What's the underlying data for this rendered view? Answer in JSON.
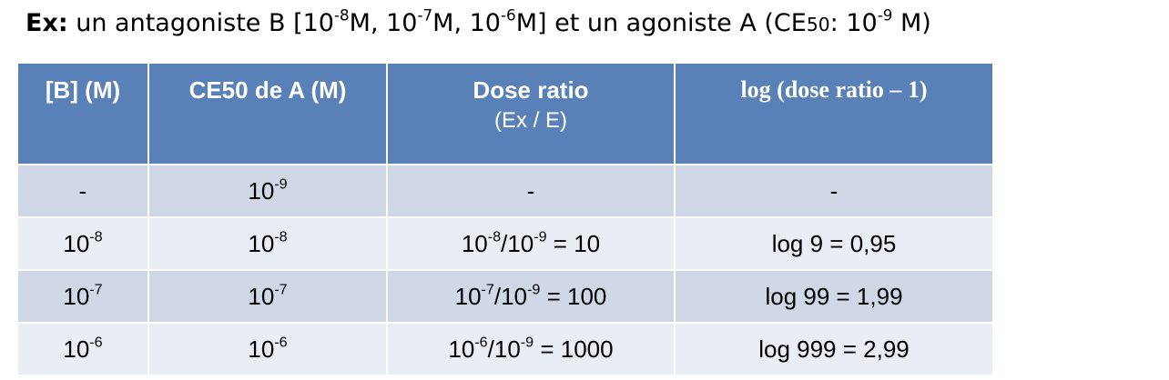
{
  "title": [
    {
      "bold": "Ex:"
    },
    {
      "text": " un antagoniste B [10"
    },
    {
      "sup": "-8"
    },
    {
      "text": "M, 10"
    },
    {
      "sup": "-7"
    },
    {
      "text": "M, 10"
    },
    {
      "sup": "-6"
    },
    {
      "text": "M] et un agoniste A (CE"
    },
    {
      "small": "50"
    },
    {
      "text": ": 10"
    },
    {
      "sup": "-9"
    },
    {
      "text": " M)"
    }
  ],
  "table": {
    "header": [
      {
        "label": "[B] (M)"
      },
      {
        "label": "CE50 de A (M)"
      },
      {
        "label": "Dose ratio",
        "sublabel": "(Ex / E)"
      },
      {
        "label": "log (dose ratio – 1)"
      }
    ],
    "rows": [
      [
        [
          {
            "text": "-"
          }
        ],
        [
          {
            "text": "10"
          },
          {
            "sup": "-9"
          }
        ],
        [
          {
            "text": "-"
          }
        ],
        [
          {
            "text": "-"
          }
        ]
      ],
      [
        [
          {
            "text": "10"
          },
          {
            "sup": "-8"
          }
        ],
        [
          {
            "text": "10"
          },
          {
            "sup": "-8"
          }
        ],
        [
          {
            "text": "10"
          },
          {
            "sup": "-8"
          },
          {
            "text": "/10"
          },
          {
            "sup": "-9"
          },
          {
            "text": " = 10"
          }
        ],
        [
          {
            "text": "log 9 = 0,95"
          }
        ]
      ],
      [
        [
          {
            "text": "10"
          },
          {
            "sup": "-7"
          }
        ],
        [
          {
            "text": "10"
          },
          {
            "sup": "-7"
          }
        ],
        [
          {
            "text": "10"
          },
          {
            "sup": "-7"
          },
          {
            "text": "/10"
          },
          {
            "sup": "-9"
          },
          {
            "text": " = 100"
          }
        ],
        [
          {
            "text": "log 99 = 1,99"
          }
        ]
      ],
      [
        [
          {
            "text": "10"
          },
          {
            "sup": "-6"
          }
        ],
        [
          {
            "text": "10"
          },
          {
            "sup": "-6"
          }
        ],
        [
          {
            "text": "10"
          },
          {
            "sup": "-6"
          },
          {
            "text": "/10"
          },
          {
            "sup": "-9"
          },
          {
            "text": " = 1000"
          }
        ],
        [
          {
            "text": "log 999 = 2,99"
          }
        ]
      ]
    ]
  }
}
